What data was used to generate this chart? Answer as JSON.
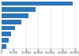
{
  "values": [
    290000,
    140000,
    110000,
    80000,
    55000,
    38000,
    28000,
    20000
  ],
  "bar_color": "#2e75b6",
  "background_color": "#ffffff",
  "grid_color": "#cccccc",
  "xlim": [
    0,
    310000
  ],
  "bar_height": 0.75,
  "figsize": [
    1.0,
    0.71
  ],
  "dpi": 100
}
